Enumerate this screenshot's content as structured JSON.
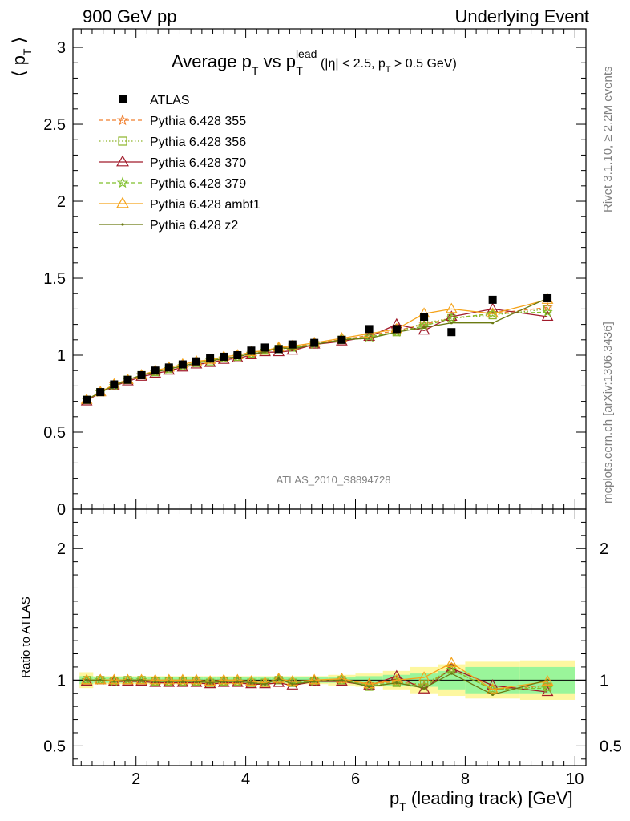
{
  "header": {
    "left": "900 GeV pp",
    "right": "Underlying Event"
  },
  "side": {
    "rivet": "Rivet 3.1.10, ≥ 2.2M events",
    "mcplots": "mcplots.cern.ch [arXiv:1306.3436]"
  },
  "chart_data": [
    {
      "type": "line",
      "title_parts": {
        "main": "Average p",
        "sub1": "T",
        "vs": " vs p",
        "sup": "lead",
        "sub2": "T",
        "cut_pre": "(|η| < 2.5, p",
        "cut_sub": "T",
        "cut_post": " > 0.5 GeV)"
      },
      "ylabel": {
        "pre": "⟨ p",
        "sub": "T",
        "post": " ⟩"
      },
      "xlim": [
        0.85,
        10.2
      ],
      "ylim": [
        0,
        3.12
      ],
      "yticks": [
        "0",
        "0.5",
        "1",
        "1.5",
        "2",
        "2.5",
        "3"
      ],
      "ytick_values": [
        0,
        0.5,
        1,
        1.5,
        2,
        2.5,
        3
      ],
      "watermark": "ATLAS_2010_S8894728",
      "x": [
        1.1,
        1.35,
        1.6,
        1.85,
        2.1,
        2.35,
        2.6,
        2.85,
        3.1,
        3.35,
        3.6,
        3.85,
        4.1,
        4.35,
        4.6,
        4.85,
        5.25,
        5.75,
        6.25,
        6.75,
        7.25,
        7.75,
        8.5,
        9.5
      ],
      "atlas": {
        "name": "ATLAS",
        "y": [
          0.71,
          0.76,
          0.81,
          0.84,
          0.87,
          0.9,
          0.92,
          0.94,
          0.96,
          0.98,
          0.99,
          1.0,
          1.03,
          1.05,
          1.04,
          1.07,
          1.08,
          1.1,
          1.17,
          1.17,
          1.25,
          1.15,
          1.36,
          1.37
        ]
      },
      "series": [
        {
          "name": "Pythia 6.428 355",
          "color": "#f07f2e",
          "marker": "star",
          "dash": "5,3",
          "y": [
            0.71,
            0.76,
            0.81,
            0.84,
            0.87,
            0.89,
            0.91,
            0.93,
            0.95,
            0.97,
            0.98,
            0.99,
            1.01,
            1.03,
            1.05,
            1.05,
            1.08,
            1.1,
            1.13,
            1.16,
            1.2,
            1.24,
            1.27,
            1.31
          ]
        },
        {
          "name": "Pythia 6.428 356",
          "color": "#8db328",
          "marker": "square",
          "dash": "1.5,2.5",
          "y": [
            0.71,
            0.76,
            0.8,
            0.84,
            0.87,
            0.89,
            0.91,
            0.93,
            0.95,
            0.96,
            0.98,
            0.99,
            1.01,
            1.03,
            1.04,
            1.05,
            1.07,
            1.1,
            1.11,
            1.15,
            1.21,
            1.24,
            1.26,
            1.3
          ]
        },
        {
          "name": "Pythia 6.428 370",
          "color": "#a01a2a",
          "marker": "triangle",
          "dash": "",
          "y": [
            0.7,
            0.76,
            0.8,
            0.83,
            0.86,
            0.88,
            0.9,
            0.92,
            0.94,
            0.95,
            0.97,
            0.98,
            1.0,
            1.02,
            1.02,
            1.03,
            1.07,
            1.09,
            1.12,
            1.2,
            1.16,
            1.25,
            1.3,
            1.25
          ]
        },
        {
          "name": "Pythia 6.428 379",
          "color": "#7fbf2a",
          "marker": "star",
          "dash": "5,3",
          "y": [
            0.71,
            0.76,
            0.8,
            0.84,
            0.87,
            0.89,
            0.91,
            0.93,
            0.95,
            0.97,
            0.98,
            0.99,
            1.01,
            1.03,
            1.04,
            1.05,
            1.07,
            1.1,
            1.12,
            1.15,
            1.19,
            1.24,
            1.27,
            1.28
          ]
        },
        {
          "name": "Pythia 6.428 ambt1",
          "color": "#f5a31a",
          "marker": "triangle",
          "dash": "",
          "y": [
            0.71,
            0.76,
            0.81,
            0.84,
            0.87,
            0.9,
            0.92,
            0.94,
            0.96,
            0.97,
            0.99,
            1.0,
            1.02,
            1.03,
            1.05,
            1.06,
            1.08,
            1.11,
            1.14,
            1.17,
            1.27,
            1.3,
            1.27,
            1.36
          ]
        },
        {
          "name": "Pythia 6.428 z2",
          "color": "#6b7a12",
          "marker": "dot",
          "dash": "",
          "y": [
            0.71,
            0.76,
            0.8,
            0.84,
            0.87,
            0.89,
            0.91,
            0.93,
            0.95,
            0.96,
            0.98,
            0.99,
            1.01,
            1.02,
            1.05,
            1.04,
            1.07,
            1.1,
            1.11,
            1.15,
            1.18,
            1.21,
            1.21,
            1.37
          ]
        }
      ]
    },
    {
      "type": "line",
      "ylabel": "Ratio to ATLAS",
      "xlabel": {
        "pre": "p",
        "sub": "T",
        "post": " (leading track) [GeV]"
      },
      "xlim": [
        0.85,
        10.2
      ],
      "ylim": [
        0.35,
        2.3
      ],
      "yticks": [
        "0.5",
        "1",
        "2"
      ],
      "ytick_values": [
        0.5,
        1,
        2
      ],
      "xticks": [
        "2",
        "4",
        "6",
        "8",
        "10"
      ],
      "xtick_values": [
        2,
        4,
        6,
        8,
        10
      ],
      "bands": {
        "edges": [
          0.97,
          1.22,
          1.47,
          1.72,
          1.97,
          2.22,
          2.47,
          2.72,
          2.97,
          3.22,
          3.47,
          3.72,
          3.97,
          4.22,
          4.47,
          4.72,
          4.97,
          5.5,
          6.0,
          6.5,
          7.0,
          7.5,
          8.0,
          9.0,
          10.0
        ],
        "green": [
          0.03,
          0.02,
          0.02,
          0.02,
          0.02,
          0.02,
          0.02,
          0.02,
          0.02,
          0.02,
          0.02,
          0.02,
          0.02,
          0.02,
          0.02,
          0.02,
          0.02,
          0.02,
          0.03,
          0.04,
          0.05,
          0.07,
          0.1,
          0.1
        ],
        "yellow": [
          0.06,
          0.03,
          0.03,
          0.03,
          0.03,
          0.03,
          0.03,
          0.03,
          0.03,
          0.03,
          0.03,
          0.03,
          0.03,
          0.03,
          0.03,
          0.03,
          0.03,
          0.04,
          0.05,
          0.07,
          0.1,
          0.12,
          0.14,
          0.15
        ]
      },
      "ratios": [
        [
          1.0,
          1.0,
          1.0,
          1.0,
          1.0,
          0.99,
          0.99,
          0.99,
          0.99,
          0.99,
          0.99,
          0.99,
          0.98,
          0.98,
          1.01,
          0.98,
          1.0,
          1.0,
          0.97,
          0.99,
          0.96,
          1.08,
          0.93,
          0.96
        ],
        [
          1.0,
          1.0,
          0.99,
          1.0,
          1.0,
          0.99,
          0.99,
          0.99,
          0.99,
          0.98,
          0.99,
          0.99,
          0.98,
          0.98,
          1.0,
          0.98,
          0.99,
          1.0,
          0.95,
          0.98,
          0.97,
          1.08,
          0.93,
          0.95
        ],
        [
          0.99,
          1.0,
          0.99,
          0.99,
          0.99,
          0.98,
          0.98,
          0.98,
          0.98,
          0.97,
          0.98,
          0.98,
          0.97,
          0.97,
          0.98,
          0.96,
          0.99,
          0.99,
          0.96,
          1.03,
          0.93,
          1.09,
          0.96,
          0.91
        ],
        [
          1.0,
          1.0,
          0.99,
          1.0,
          1.0,
          0.99,
          0.99,
          0.99,
          0.99,
          0.99,
          0.99,
          0.99,
          0.98,
          0.98,
          1.0,
          0.98,
          0.99,
          1.0,
          0.96,
          0.98,
          0.95,
          1.08,
          0.93,
          0.94
        ],
        [
          1.0,
          1.0,
          1.0,
          1.0,
          1.0,
          1.0,
          1.0,
          1.0,
          1.0,
          0.99,
          1.0,
          1.0,
          0.99,
          0.98,
          1.01,
          0.99,
          1.0,
          1.01,
          0.97,
          1.0,
          1.02,
          1.13,
          0.93,
          0.99
        ],
        [
          1.0,
          1.0,
          0.99,
          1.0,
          1.0,
          0.99,
          0.99,
          0.99,
          0.99,
          0.98,
          0.99,
          0.99,
          0.98,
          0.97,
          1.01,
          0.97,
          0.99,
          1.0,
          0.95,
          0.98,
          0.94,
          1.05,
          0.89,
          1.0
        ]
      ]
    }
  ]
}
